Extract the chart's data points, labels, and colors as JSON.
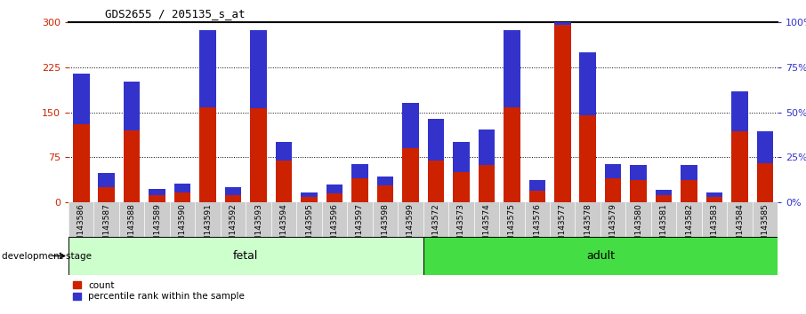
{
  "title": "GDS2655 / 205135_s_at",
  "samples": [
    "GSM143586",
    "GSM143587",
    "GSM143588",
    "GSM143589",
    "GSM143590",
    "GSM143591",
    "GSM143592",
    "GSM143593",
    "GSM143594",
    "GSM143595",
    "GSM143596",
    "GSM143597",
    "GSM143598",
    "GSM143599",
    "GSM143572",
    "GSM143573",
    "GSM143574",
    "GSM143575",
    "GSM143576",
    "GSM143577",
    "GSM143578",
    "GSM143579",
    "GSM143580",
    "GSM143581",
    "GSM143582",
    "GSM143583",
    "GSM143584",
    "GSM143585"
  ],
  "counts": [
    130,
    25,
    120,
    13,
    17,
    158,
    13,
    157,
    70,
    10,
    15,
    40,
    28,
    90,
    70,
    50,
    62,
    158,
    20,
    295,
    145,
    40,
    38,
    12,
    38,
    10,
    118,
    65
  ],
  "percentile_ranks": [
    28,
    8,
    27,
    3,
    5,
    43,
    4,
    43,
    10,
    2,
    5,
    8,
    5,
    25,
    23,
    17,
    20,
    43,
    6,
    50,
    35,
    8,
    8,
    3,
    8,
    2,
    22,
    18
  ],
  "fetal_count": 14,
  "adult_count": 14,
  "fetal_label": "fetal",
  "adult_label": "adult",
  "stage_label": "development stage",
  "count_label": "count",
  "percentile_label": "percentile rank within the sample",
  "ylim_left": [
    0,
    300
  ],
  "ylim_right": [
    0,
    100
  ],
  "yticks_left": [
    0,
    75,
    150,
    225,
    300
  ],
  "yticks_right": [
    0,
    25,
    50,
    75,
    100
  ],
  "bar_color": "#cc2200",
  "blue_color": "#3333cc",
  "fetal_bg": "#ccffcc",
  "adult_bg": "#44dd44",
  "xtick_bg": "#cccccc",
  "left_axis_color": "#cc2200",
  "right_axis_color": "#3333cc",
  "dotted_lines": [
    75,
    150,
    225
  ],
  "title_fontsize": 9,
  "bar_fontsize": 6.5
}
